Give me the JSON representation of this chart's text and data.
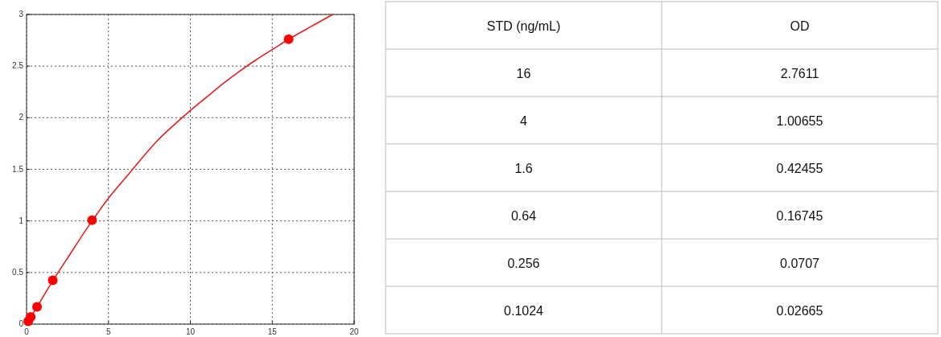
{
  "chart_data": [
    {
      "type": "scatter",
      "xlim": [
        0,
        20
      ],
      "xticks": [
        0,
        5,
        10,
        15,
        20
      ],
      "ylim": [
        0,
        3
      ],
      "yticks": [
        0,
        0.5,
        1,
        1.5,
        2,
        2.5,
        3
      ],
      "grid": true,
      "series": [
        {
          "color": "#ff0000",
          "marker": "circle",
          "x": [
            16,
            4,
            1.6,
            0.64,
            0.256,
            0.1024
          ],
          "values": [
            2.7611,
            1.00655,
            0.42455,
            0.16745,
            0.0707,
            0.02665
          ]
        },
        {
          "type": "line",
          "color": "#e02020",
          "line_style": "solid",
          "x": [
            0,
            0.1024,
            0.256,
            0.64,
            1.6,
            2.5,
            4,
            5,
            6,
            7,
            8,
            9,
            10,
            11,
            12,
            13,
            14,
            15,
            16,
            17,
            18,
            18.7
          ],
          "values": [
            0,
            0.027,
            0.07,
            0.167,
            0.42,
            0.64,
            1.0,
            1.22,
            1.41,
            1.6,
            1.78,
            1.93,
            2.07,
            2.2,
            2.33,
            2.45,
            2.56,
            2.66,
            2.76,
            2.85,
            2.94,
            3.0
          ]
        }
      ]
    },
    {
      "type": "other",
      "annotations": [
        "STD (ng/mL)",
        "OD",
        "16",
        "2.7611",
        "4",
        "1.00655",
        "1.6",
        "0.42455",
        "0.64",
        "0.16745",
        "0.256",
        "0.0707",
        "0.1024",
        "0.02665"
      ]
    }
  ]
}
